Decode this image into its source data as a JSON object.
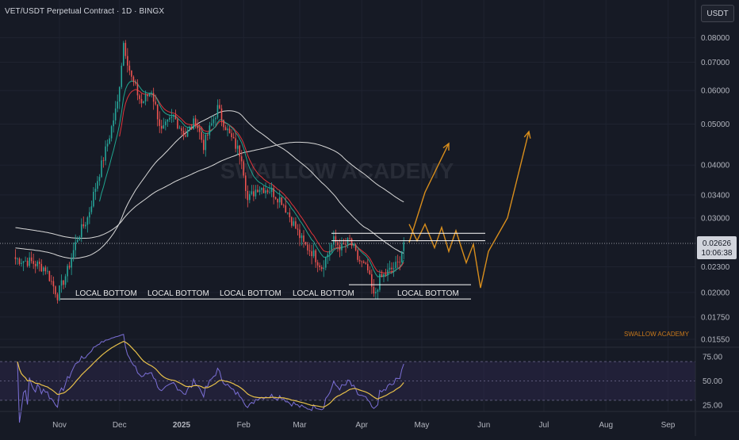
{
  "header": {
    "title": "VET/USDT Perpetual Contract · 1D · BINGX",
    "currency_button": "USDT"
  },
  "colors": {
    "background": "#161a25",
    "grid": "#1f2330",
    "up": "#26a69a",
    "down": "#ef5350",
    "projection": "#d98e1c",
    "ma_white": "#d8d8d8",
    "ema_red": "#e0343a",
    "ema_teal": "#1fa690",
    "rsi_line": "#7b6fd6",
    "rsi_ma": "#e7c04a",
    "rsi_band": "#2b2748"
  },
  "watermark": "SWALLOW ACADEMY",
  "footer_brand": "SWALLOW ACADEMY",
  "annotations": {
    "labels": [
      "LOCAL BOTTOM",
      "LOCAL BOTTOM",
      "LOCAL BOTTOM",
      "LOCAL BOTTOM",
      "LOCAL BOTTOM"
    ]
  },
  "price_badge": {
    "price": "0.02626",
    "countdown": "10:06:38"
  },
  "chart_data": [
    {
      "type": "candlestick",
      "title": "VET/USDT Perpetual Contract · 1D · BINGX",
      "y_scale": "log",
      "y_ticks": [
        "0.08000",
        "0.07000",
        "0.06000",
        "0.05000",
        "0.04000",
        "0.03400",
        "0.03000",
        "0.02300",
        "0.02000",
        "0.01750",
        "0.01550"
      ],
      "x_ticks": [
        "Nov",
        "Dec",
        "2025",
        "Feb",
        "Mar",
        "Apr",
        "May",
        "Jun",
        "Jul",
        "Aug",
        "Sep"
      ],
      "last_price": 0.02626,
      "support_level": 0.0193,
      "resistance_zone": [
        0.0265,
        0.0276
      ],
      "price_path": [
        [
          "2024-10-10",
          0.024
        ],
        [
          "2024-10-18",
          0.0236
        ],
        [
          "2024-10-25",
          0.0228
        ],
        [
          "2024-10-31",
          0.0197
        ],
        [
          "2024-11-05",
          0.0225
        ],
        [
          "2024-11-10",
          0.027
        ],
        [
          "2024-11-15",
          0.03
        ],
        [
          "2024-11-20",
          0.037
        ],
        [
          "2024-11-25",
          0.045
        ],
        [
          "2024-11-30",
          0.056
        ],
        [
          "2024-12-03",
          0.078
        ],
        [
          "2024-12-07",
          0.064
        ],
        [
          "2024-12-12",
          0.056
        ],
        [
          "2024-12-17",
          0.06
        ],
        [
          "2024-12-22",
          0.048
        ],
        [
          "2024-12-28",
          0.052
        ],
        [
          "2025-01-03",
          0.047
        ],
        [
          "2025-01-08",
          0.051
        ],
        [
          "2025-01-12",
          0.0445
        ],
        [
          "2025-01-19",
          0.0545
        ],
        [
          "2025-01-25",
          0.047
        ],
        [
          "2025-01-31",
          0.042
        ],
        [
          "2025-02-03",
          0.033
        ],
        [
          "2025-02-08",
          0.0355
        ],
        [
          "2025-02-14",
          0.035
        ],
        [
          "2025-02-20",
          0.033
        ],
        [
          "2025-02-26",
          0.029
        ],
        [
          "2025-03-03",
          0.026
        ],
        [
          "2025-03-07",
          0.025
        ],
        [
          "2025-03-12",
          0.023
        ],
        [
          "2025-03-18",
          0.0265
        ],
        [
          "2025-03-22",
          0.0255
        ],
        [
          "2025-03-26",
          0.0265
        ],
        [
          "2025-03-30",
          0.024
        ],
        [
          "2025-04-04",
          0.0225
        ],
        [
          "2025-04-07",
          0.0195
        ],
        [
          "2025-04-10",
          0.0215
        ],
        [
          "2025-04-15",
          0.0225
        ],
        [
          "2025-04-19",
          0.0233
        ],
        [
          "2025-04-22",
          0.02626
        ]
      ],
      "indicators": [
        "MA white 200",
        "MA white 100",
        "EMA red",
        "EMA teal"
      ],
      "projection_1": [
        [
          0.02626,
          0.0345
        ],
        [
          0.0345,
          0.045
        ]
      ],
      "projection_2": [
        0.029,
        0.0265,
        0.029,
        0.0255,
        0.0285,
        0.025,
        0.028,
        0.0235,
        0.026,
        0.0205,
        0.025,
        0.03,
        0.048
      ]
    },
    {
      "type": "line",
      "name": "RSI",
      "y_ticks": [
        "75.00",
        "50.00",
        "25.00"
      ],
      "band": [
        30,
        70
      ],
      "level_50": 50
    }
  ]
}
